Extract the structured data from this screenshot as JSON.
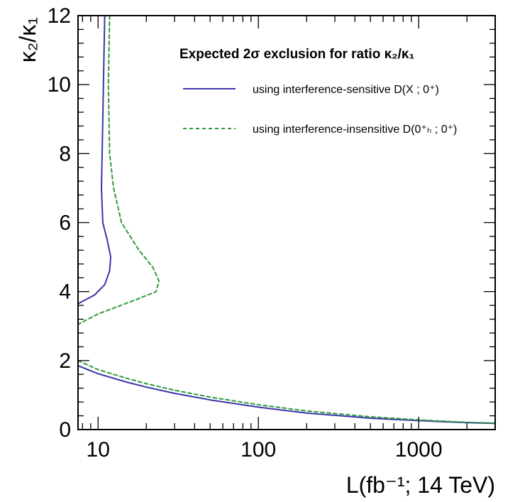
{
  "chart_data": {
    "type": "line",
    "xscale": "log",
    "xlim": [
      7.5,
      3000
    ],
    "ylim": [
      0,
      12
    ],
    "grid": false,
    "legend_position": "top-right",
    "xlabel": "L(fb⁻¹; 14 TeV)",
    "ylabel": "κ₂/κ₁",
    "legend_title": "Expected 2σ exclusion for ratio κ₂/κ₁",
    "x_ticks": [
      10,
      100,
      1000
    ],
    "x_tick_labels": [
      "10",
      "100",
      "1000"
    ],
    "y_ticks": [
      0,
      2,
      4,
      6,
      8,
      10,
      12
    ],
    "y_tick_labels": [
      "0",
      "2",
      "4",
      "6",
      "8",
      "10",
      "12"
    ],
    "series": [
      {
        "name": "using interference-sensitive D(X ; 0⁺)",
        "color": "#3a35a8",
        "style": "solid",
        "segments": [
          [
            [
              11.0,
              12.0
            ],
            [
              10.8,
              10.0
            ],
            [
              10.6,
              8.0
            ],
            [
              10.5,
              7.0
            ],
            [
              10.7,
              6.0
            ],
            [
              11.4,
              5.5
            ],
            [
              12.0,
              5.0
            ],
            [
              11.8,
              4.6
            ],
            [
              11.0,
              4.2
            ],
            [
              9.5,
              3.9
            ],
            [
              7.5,
              3.65
            ]
          ],
          [
            [
              7.5,
              1.85
            ],
            [
              10,
              1.62
            ],
            [
              15,
              1.38
            ],
            [
              20,
              1.23
            ],
            [
              30,
              1.05
            ],
            [
              50,
              0.86
            ],
            [
              100,
              0.65
            ],
            [
              200,
              0.48
            ],
            [
              500,
              0.33
            ],
            [
              1000,
              0.26
            ],
            [
              2000,
              0.2
            ],
            [
              3000,
              0.18
            ]
          ]
        ]
      },
      {
        "name": "using interference-insensitive D(0⁺ₕ ; 0⁺)",
        "color": "#2e9a3e",
        "style": "dashed",
        "segments": [
          [
            [
              11.8,
              12.0
            ],
            [
              11.6,
              10.0
            ],
            [
              11.8,
              8.0
            ],
            [
              12.5,
              7.0
            ],
            [
              14.0,
              6.0
            ],
            [
              18.0,
              5.2
            ],
            [
              22.0,
              4.7
            ],
            [
              24.0,
              4.3
            ],
            [
              23.0,
              4.0
            ],
            [
              18.0,
              3.8
            ],
            [
              13.0,
              3.55
            ],
            [
              10.0,
              3.35
            ],
            [
              7.5,
              3.05
            ]
          ],
          [
            [
              7.5,
              2.0
            ],
            [
              10,
              1.74
            ],
            [
              15,
              1.49
            ],
            [
              20,
              1.33
            ],
            [
              30,
              1.14
            ],
            [
              50,
              0.94
            ],
            [
              100,
              0.72
            ],
            [
              200,
              0.54
            ],
            [
              500,
              0.37
            ],
            [
              1000,
              0.28
            ],
            [
              2000,
              0.21
            ],
            [
              3000,
              0.19
            ]
          ]
        ]
      }
    ]
  }
}
